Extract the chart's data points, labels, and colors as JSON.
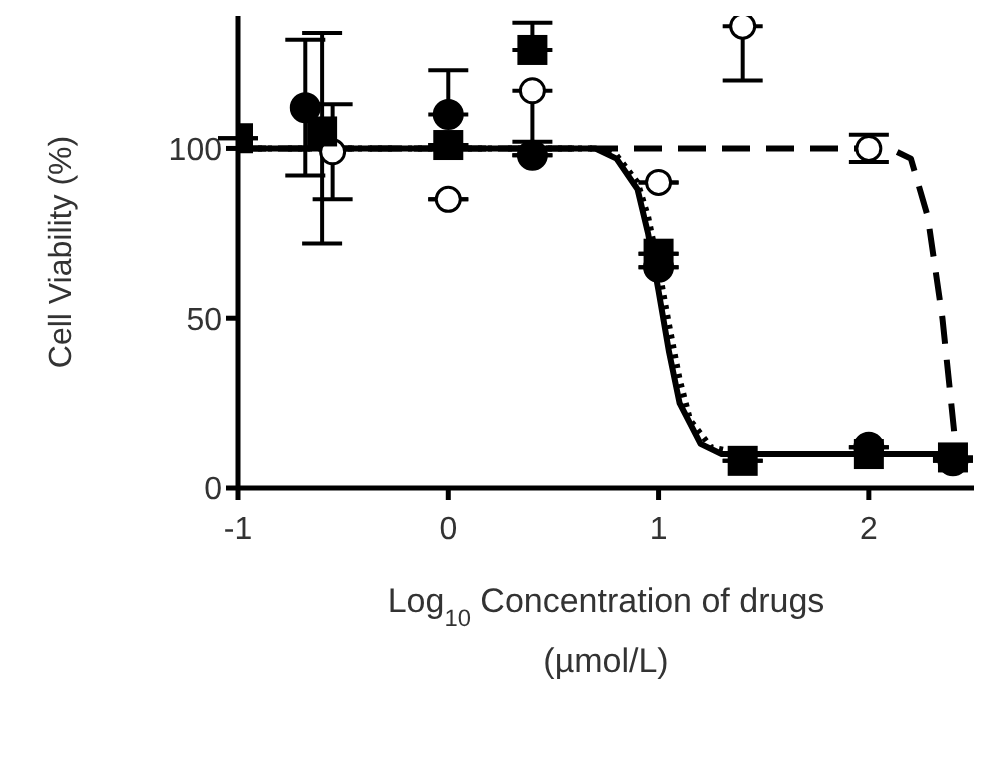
{
  "chart_data": {
    "type": "scatter",
    "xlabel": "Log$_{10}$ Concentration of drugs (µmol/L)",
    "ylabel": "Cell Viability (%)",
    "xlim": [
      -1,
      2.5
    ],
    "xticks": [
      -1,
      0,
      1,
      2
    ],
    "ylim": [
      0,
      139
    ],
    "yticks": [
      0,
      50,
      100
    ],
    "grid": false,
    "series": [
      {
        "type": "line",
        "line_style": "solid",
        "color": "#000000",
        "x": [
          -1,
          0.7,
          0.8,
          0.9,
          0.95,
          1.0,
          1.05,
          1.1,
          1.2,
          1.3,
          1.5,
          2.45
        ],
        "values": [
          100,
          100,
          97,
          88,
          75,
          58,
          40,
          25,
          13,
          10,
          10,
          10
        ]
      },
      {
        "type": "line",
        "line_style": "dotted",
        "color": "#000000",
        "x": [
          -1,
          0.7,
          0.8,
          0.9,
          0.95,
          1.0,
          1.05,
          1.1,
          1.15,
          1.25,
          1.4,
          2.45
        ],
        "values": [
          100,
          100,
          98,
          90,
          80,
          65,
          48,
          32,
          20,
          12,
          10,
          10
        ]
      },
      {
        "type": "line",
        "line_style": "dashed",
        "color": "#000000",
        "x": [
          -1,
          2.1,
          2.2,
          2.28,
          2.35,
          2.42
        ],
        "values": [
          100,
          100,
          97,
          80,
          50,
          8
        ]
      },
      {
        "marker": "circle",
        "color": "#ffffff",
        "x": [
          -0.55,
          0,
          0.4,
          1,
          1.4,
          2
        ],
        "values": [
          99,
          85,
          117,
          90,
          136,
          100
        ],
        "errors": [
          [
            85,
            113
          ],
          null,
          [
            102,
            117
          ],
          null,
          [
            120,
            136
          ],
          [
            96,
            104
          ]
        ]
      },
      {
        "marker": "square",
        "color": "#000000",
        "x": [
          -1,
          -0.6,
          0,
          0.4,
          1,
          1.4,
          2,
          2.4
        ],
        "values": [
          103,
          105,
          101,
          129,
          69,
          8,
          10,
          9
        ],
        "errors": [
          null,
          [
            72,
            134
          ],
          null,
          [
            129,
            137
          ],
          null,
          null,
          null,
          null
        ]
      },
      {
        "marker": "circle",
        "color": "#000000",
        "x": [
          -0.68,
          0,
          0.4,
          1,
          2,
          2.4
        ],
        "values": [
          112,
          110,
          98,
          65,
          12,
          8
        ],
        "errors": [
          [
            92,
            132
          ],
          [
            110,
            123
          ],
          null,
          null,
          null,
          null
        ]
      }
    ]
  }
}
